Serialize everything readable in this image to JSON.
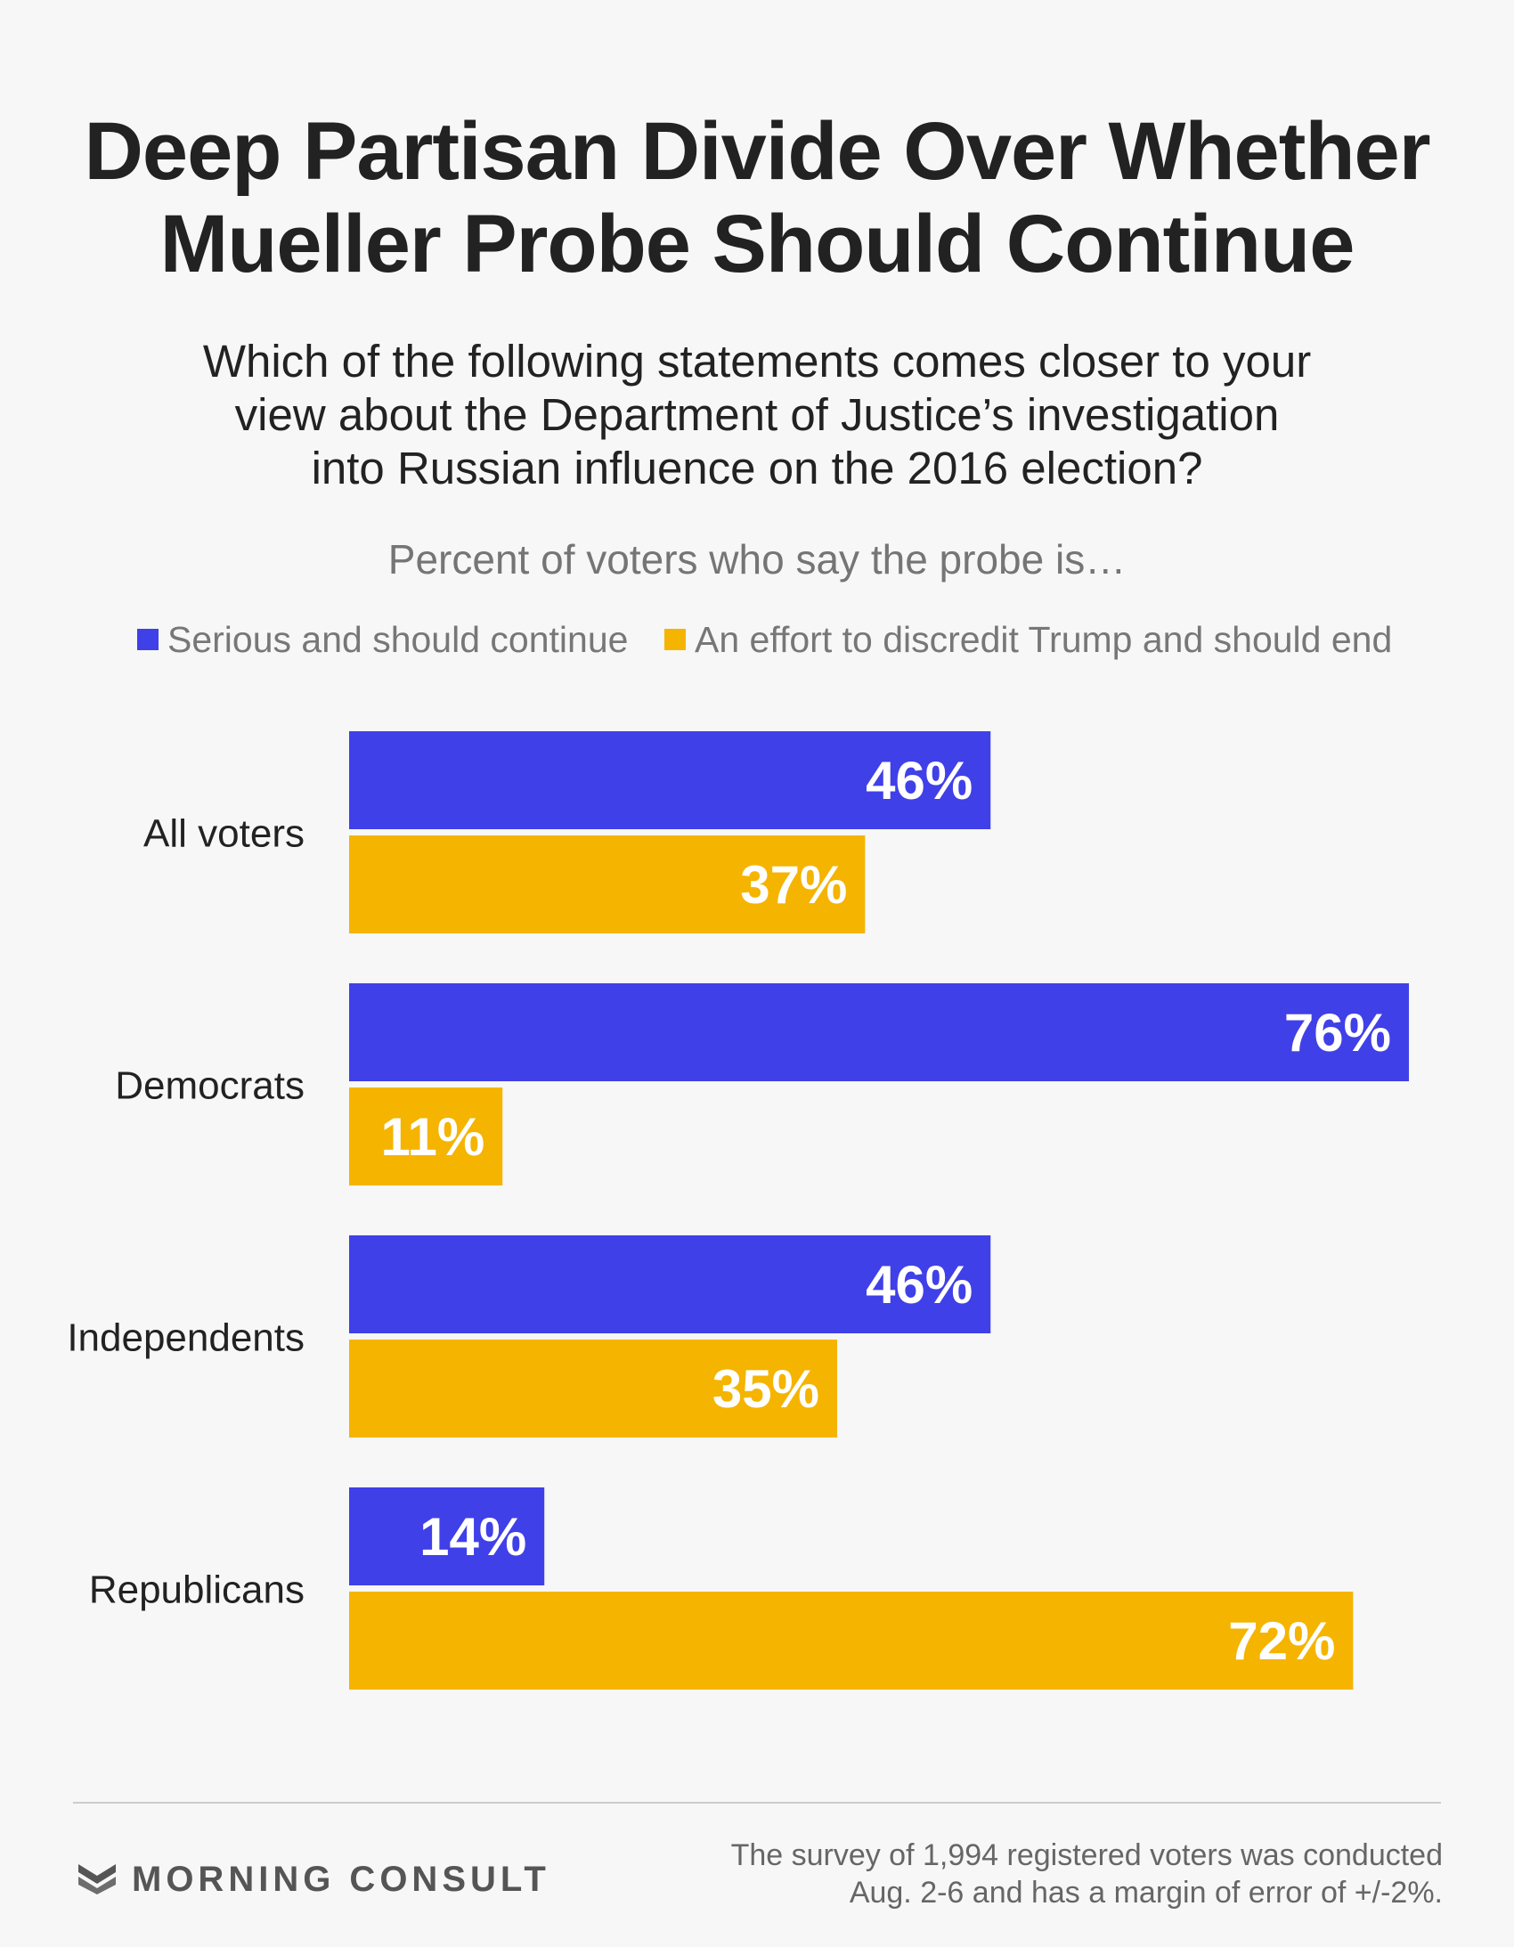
{
  "title": {
    "line1": "Deep Partisan Divide Over Whether",
    "line2": "Mueller Probe Should Continue"
  },
  "question": {
    "line1": "Which of the following statements comes closer to your",
    "line2": "view about the Department of Justice’s investigation",
    "line3": "into Russian influence on the 2016 election?"
  },
  "subtitle": "Percent of voters who say the probe is…",
  "colors": {
    "continue": "#4040e8",
    "end": "#f5b400",
    "label_text": "#ffffff"
  },
  "chart_data": {
    "type": "bar",
    "orientation": "horizontal",
    "categories": [
      "All voters",
      "Democrats",
      "Independents",
      "Republicans"
    ],
    "series": [
      {
        "name": "Serious and should continue",
        "values": [
          46,
          76,
          46,
          14
        ]
      },
      {
        "name": "An effort to discredit Trump and should end",
        "values": [
          37,
          11,
          35,
          72
        ]
      }
    ],
    "value_labels": [
      [
        "46%",
        "76%",
        "46%",
        "14%"
      ],
      [
        "37%",
        "11%",
        "35%",
        "72%"
      ]
    ],
    "xlim": [
      0,
      76
    ],
    "grid": false,
    "legend": "top"
  },
  "brand": "MORNING CONSULT",
  "footnote": {
    "line1": "The survey of 1,994 registered voters was conducted",
    "line2": "Aug. 2-6 and has a margin of error of +/-2%."
  }
}
